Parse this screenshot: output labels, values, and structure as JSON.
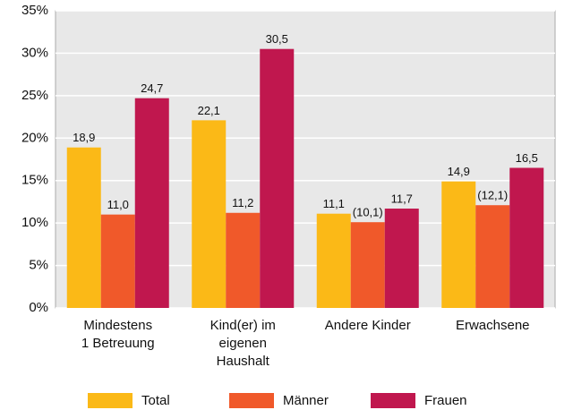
{
  "chart_data": {
    "type": "bar",
    "categories": [
      [
        "Mindestens",
        "1 Betreuung"
      ],
      [
        "Kind(er) im",
        "eigenen",
        "Haushalt"
      ],
      [
        "Andere Kinder"
      ],
      [
        "Erwachsene"
      ]
    ],
    "series": [
      {
        "name": "Total",
        "color": "#fbb917",
        "values": [
          18.9,
          22.1,
          11.1,
          14.9
        ],
        "value_labels": [
          "18,9",
          "22,1",
          "11,1",
          "14,9"
        ]
      },
      {
        "name": "Männer",
        "color": "#f0592a",
        "values": [
          11.0,
          11.2,
          10.1,
          12.1
        ],
        "value_labels": [
          "11,0",
          "11,2",
          "(10,1)",
          "(12,1)"
        ]
      },
      {
        "name": "Frauen",
        "color": "#c0174e",
        "values": [
          24.7,
          30.5,
          11.7,
          16.5
        ],
        "value_labels": [
          "24,7",
          "30,5",
          "11,7",
          "16,5"
        ]
      }
    ],
    "ylim": [
      0,
      35
    ],
    "yticks": [
      {
        "value": 0,
        "label": "0%"
      },
      {
        "value": 5,
        "label": "5%"
      },
      {
        "value": 10,
        "label": "10%"
      },
      {
        "value": 15,
        "label": "15%"
      },
      {
        "value": 20,
        "label": "20%"
      },
      {
        "value": 25,
        "label": "25%"
      },
      {
        "value": 30,
        "label": "30%"
      },
      {
        "value": 35,
        "label": "35%"
      }
    ],
    "grid": true,
    "legend": "bottom"
  }
}
